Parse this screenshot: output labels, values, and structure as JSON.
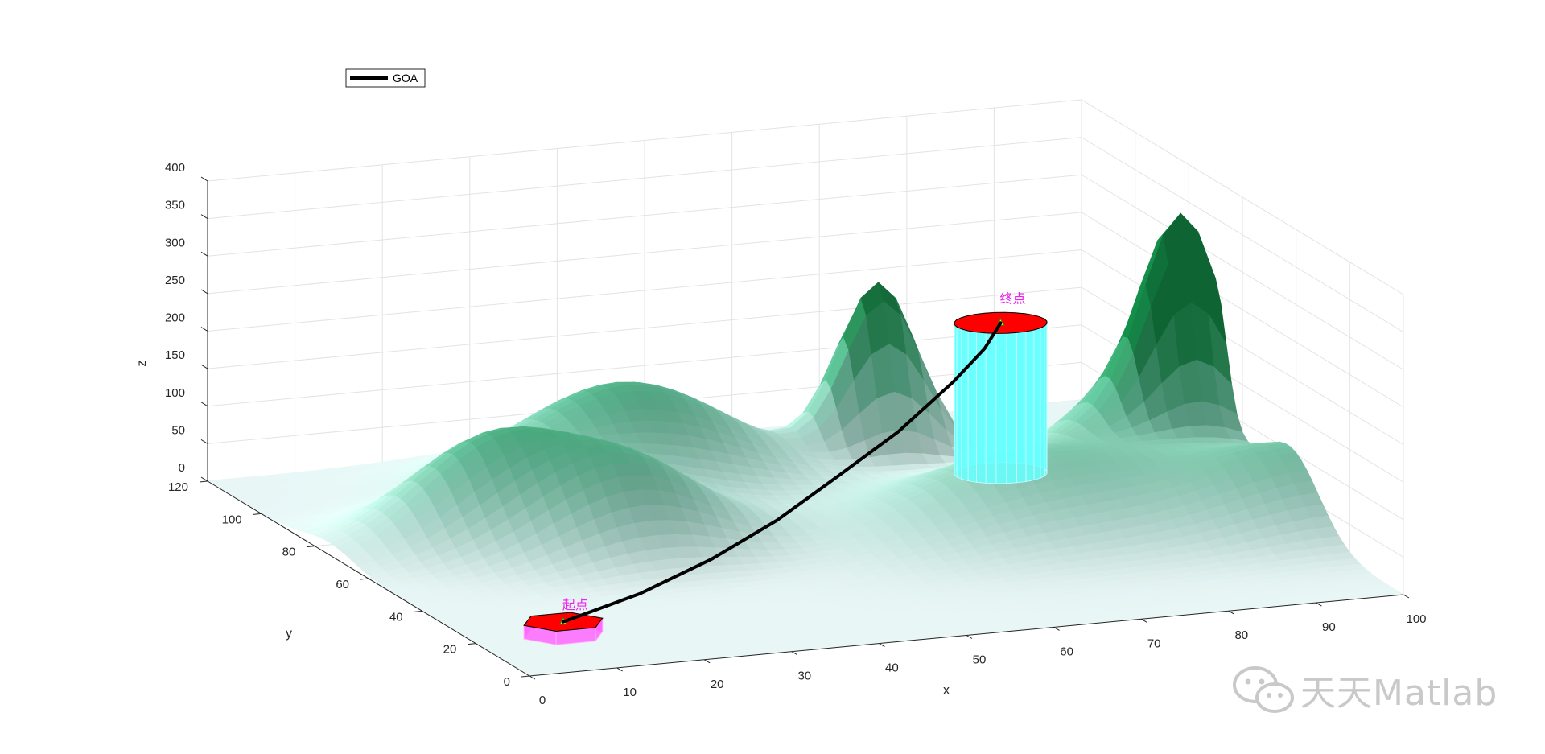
{
  "chart_data": {
    "type": "surface3d",
    "title": "",
    "xlabel": "x",
    "ylabel": "y",
    "zlabel": "z",
    "xlim": [
      0,
      100
    ],
    "ylim": [
      0,
      120
    ],
    "zlim": [
      0,
      400
    ],
    "xticks": [
      "0",
      "10",
      "20",
      "30",
      "40",
      "50",
      "60",
      "70",
      "80",
      "90",
      "100"
    ],
    "yticks": [
      "0",
      "20",
      "40",
      "60",
      "80",
      "100",
      "120"
    ],
    "zticks": [
      "0",
      "50",
      "100",
      "150",
      "200",
      "250",
      "300",
      "350",
      "400"
    ],
    "grid": true,
    "legend": {
      "position": "top-left",
      "entries": [
        {
          "name": "GOA",
          "color": "#000000"
        }
      ]
    },
    "terrain_peaks": [
      {
        "x": 18,
        "y": 75,
        "height": 120,
        "sigma": 9
      },
      {
        "x": 30,
        "y": 62,
        "height": 110,
        "sigma": 9
      },
      {
        "x": 40,
        "y": 95,
        "height": 140,
        "sigma": 12
      },
      {
        "x": 70,
        "y": 98,
        "height": 230,
        "sigma": 4.5
      },
      {
        "x": 75,
        "y": 55,
        "height": 95,
        "sigma": 14
      },
      {
        "x": 97,
        "y": 75,
        "height": 165,
        "sigma": 9
      },
      {
        "x": 96,
        "y": 70,
        "height": 200,
        "sigma": 4
      },
      {
        "x": 102,
        "y": 42,
        "height": 95,
        "sigma": 11
      }
    ],
    "series": [
      {
        "name": "GOA",
        "color": "#000000",
        "x": [
          10,
          20,
          30,
          40,
          50,
          60,
          70,
          76,
          80
        ],
        "y": [
          20,
          24,
          30,
          38,
          48,
          58,
          70,
          78,
          85
        ],
        "z": [
          18,
          36,
          58,
          82,
          108,
          135,
          165,
          185,
          200
        ]
      }
    ],
    "start": {
      "label": "起点",
      "x": 10,
      "y": 20,
      "z": 18,
      "color": "#ff0000",
      "pillar_color": "#ff66ff"
    },
    "goal": {
      "label": "终点",
      "x": 80,
      "y": 85,
      "z": 200,
      "color": "#ff0000",
      "pillar_color": "#66ffff"
    }
  },
  "watermark": {
    "text": "天天Matlab"
  }
}
